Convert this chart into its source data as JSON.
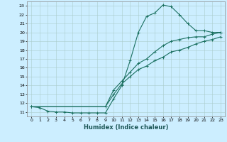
{
  "title": "",
  "xlabel": "Humidex (Indice chaleur)",
  "bg_color": "#cceeff",
  "grid_color": "#aacccc",
  "line_color": "#1a7060",
  "xlim": [
    -0.5,
    23.5
  ],
  "ylim": [
    10.5,
    23.5
  ],
  "xticks": [
    0,
    1,
    2,
    3,
    4,
    5,
    6,
    7,
    8,
    9,
    10,
    11,
    12,
    13,
    14,
    15,
    16,
    17,
    18,
    19,
    20,
    21,
    22,
    23
  ],
  "yticks": [
    11,
    12,
    13,
    14,
    15,
    16,
    17,
    18,
    19,
    20,
    21,
    22,
    23
  ],
  "line1_x": [
    0,
    1,
    2,
    3,
    4,
    5,
    6,
    7,
    8,
    9,
    10,
    11,
    12,
    13,
    14,
    15,
    16,
    17,
    18,
    19,
    20,
    21,
    22,
    23
  ],
  "line1_y": [
    11.6,
    11.5,
    11.1,
    11.0,
    11.0,
    10.9,
    10.9,
    10.9,
    10.9,
    10.9,
    12.5,
    14.0,
    16.8,
    20.0,
    21.8,
    22.2,
    23.1,
    22.9,
    22.0,
    21.0,
    20.2,
    20.2,
    20.0,
    20.0
  ],
  "line2_x": [
    0,
    9,
    10,
    11,
    12,
    13,
    14,
    15,
    16,
    17,
    18,
    19,
    20,
    21,
    22,
    23
  ],
  "line2_y": [
    11.6,
    11.6,
    13.5,
    14.5,
    15.5,
    16.5,
    17.0,
    17.8,
    18.5,
    19.0,
    19.2,
    19.4,
    19.5,
    19.5,
    19.8,
    20.0
  ],
  "line3_x": [
    0,
    9,
    10,
    11,
    12,
    13,
    14,
    15,
    16,
    17,
    18,
    19,
    20,
    21,
    22,
    23
  ],
  "line3_y": [
    11.6,
    11.6,
    13.0,
    14.2,
    15.0,
    15.8,
    16.2,
    16.8,
    17.2,
    17.8,
    18.0,
    18.3,
    18.7,
    19.0,
    19.2,
    19.5
  ]
}
